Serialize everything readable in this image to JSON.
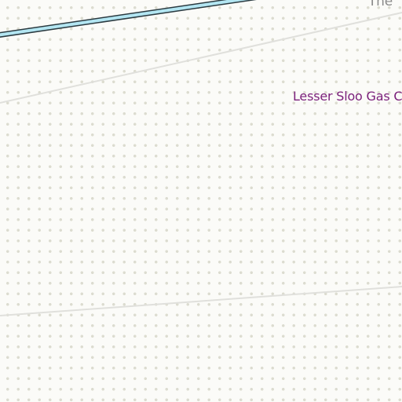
{
  "map": {
    "labels": {
      "gas_field": "Lesser Sloo Gas C",
      "top_right": "The"
    },
    "colors": {
      "background": "#fbfbf8",
      "dot_pattern": "#dcdcd0",
      "road_outline": "#2b3a40",
      "road_fill": "#b3e6f2",
      "boundary_line": "#e0e0dc",
      "gas_field_label": "#7a1f7a",
      "place_label": "#8a8a8a"
    }
  }
}
